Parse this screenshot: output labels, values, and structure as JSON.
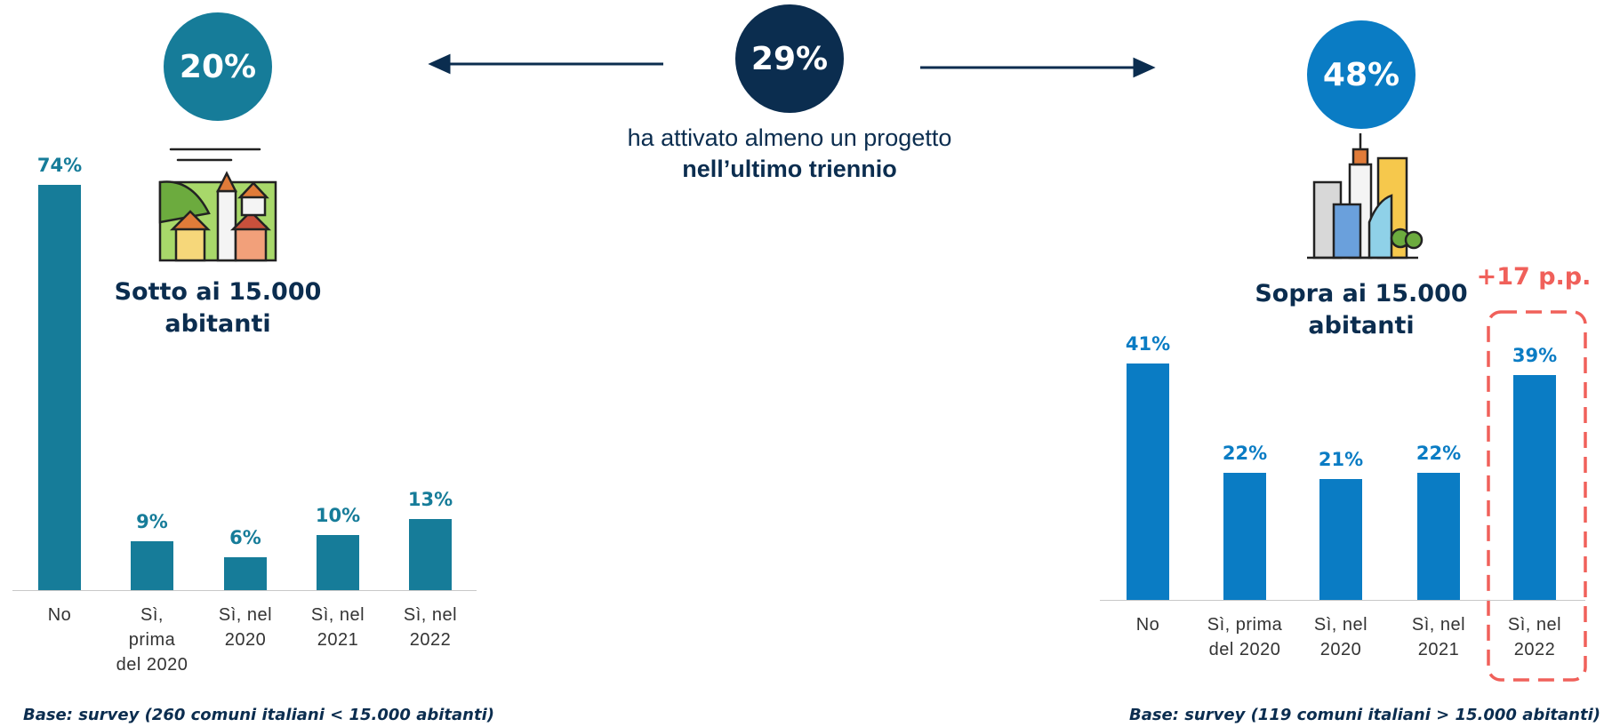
{
  "chart_data": [
    {
      "type": "bar",
      "title": "Sotto ai 15.000 abitanti",
      "highlight": "20%",
      "color": "#167c99",
      "categories": [
        "No",
        "Sì, prima del 2020",
        "Sì, nel 2020",
        "Sì, nel 2021",
        "Sì, nel 2022"
      ],
      "values": [
        74,
        9,
        6,
        10,
        13
      ],
      "value_labels": [
        "74%",
        "9%",
        "6%",
        "10%",
        "13%"
      ],
      "note": "Base: survey (260 comuni italiani < 15.000 abitanti)"
    },
    {
      "type": "bar",
      "title": "Sopra ai 15.000 abitanti",
      "highlight": "48%",
      "color": "#0a7cc4",
      "categories": [
        "No",
        "Sì, prima del 2020",
        "Sì, nel 2020",
        "Sì, nel 2021",
        "Sì, nel 2022"
      ],
      "values": [
        41,
        22,
        21,
        22,
        39
      ],
      "value_labels": [
        "41%",
        "22%",
        "21%",
        "22%",
        "39%"
      ],
      "annotation": "+17 p.p.",
      "note": "Base: survey (119 comuni italiani > 15.000 abitanti)"
    }
  ],
  "summary": {
    "value": "29%",
    "text": "ha attivato almeno un progetto ",
    "bold_text": "nell’ultimo triennio"
  }
}
